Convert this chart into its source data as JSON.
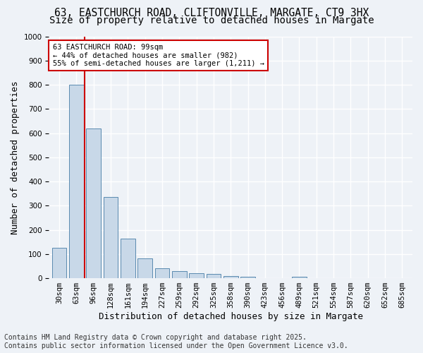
{
  "title_line1": "63, EASTCHURCH ROAD, CLIFTONVILLE, MARGATE, CT9 3HX",
  "title_line2": "Size of property relative to detached houses in Margate",
  "xlabel": "Distribution of detached houses by size in Margate",
  "ylabel": "Number of detached properties",
  "bar_values": [
    125,
    800,
    620,
    335,
    165,
    82,
    40,
    28,
    22,
    17,
    8,
    6,
    0,
    0,
    7,
    0,
    0,
    0,
    0,
    0,
    0
  ],
  "categories": [
    "30sqm",
    "63sqm",
    "96sqm",
    "128sqm",
    "161sqm",
    "194sqm",
    "227sqm",
    "259sqm",
    "292sqm",
    "325sqm",
    "358sqm",
    "390sqm",
    "423sqm",
    "456sqm",
    "489sqm",
    "521sqm",
    "554sqm",
    "587sqm",
    "620sqm",
    "652sqm",
    "685sqm"
  ],
  "bar_color": "#c8d8e8",
  "bar_edge_color": "#5a8ab0",
  "vline_x": 2,
  "vline_color": "#cc0000",
  "annotation_text": "63 EASTCHURCH ROAD: 99sqm\n← 44% of detached houses are smaller (982)\n55% of semi-detached houses are larger (1,211) →",
  "annotation_box_color": "#ffffff",
  "annotation_border_color": "#cc0000",
  "ylim": [
    0,
    1000
  ],
  "yticks": [
    0,
    100,
    200,
    300,
    400,
    500,
    600,
    700,
    800,
    900,
    1000
  ],
  "footer_text": "Contains HM Land Registry data © Crown copyright and database right 2025.\nContains public sector information licensed under the Open Government Licence v3.0.",
  "bg_color": "#eef2f7",
  "plot_bg_color": "#eef2f7",
  "grid_color": "#ffffff",
  "title_fontsize": 10.5,
  "axis_label_fontsize": 9,
  "tick_fontsize": 7.5,
  "footer_fontsize": 7
}
